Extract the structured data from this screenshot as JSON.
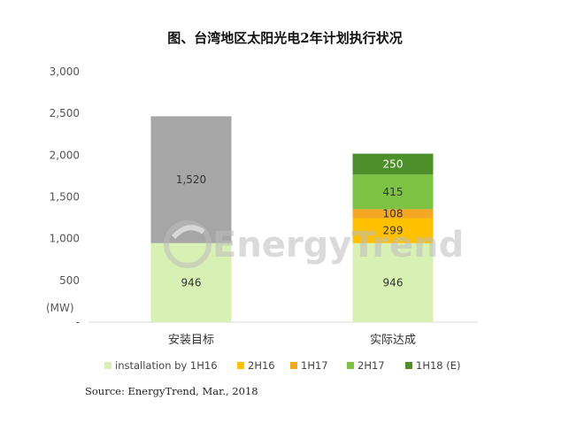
{
  "chart_data": {
    "type": "bar",
    "stacked": true,
    "title": "图、台湾地区太阳光电2年计划执行状况",
    "ylabel": "(MW)",
    "ylim": [
      0,
      3000
    ],
    "yticks": [
      0,
      500,
      1000,
      1500,
      2000,
      2500,
      3000
    ],
    "ytick_labels": [
      "-",
      "500",
      "1,000",
      "1,500",
      "2,000",
      "2,500",
      "3,000"
    ],
    "categories": [
      "安装目标",
      "实际达成"
    ],
    "series": [
      {
        "name": "installation by 1H16",
        "color": "#d9f0b4",
        "values": [
          946,
          946
        ]
      },
      {
        "name": "",
        "color": "#a6a6a6",
        "values": [
          1520,
          0
        ]
      },
      {
        "name": "2H16",
        "color": "#ffc000",
        "values": [
          0,
          299
        ]
      },
      {
        "name": "1H17",
        "color": "#f5a623",
        "values": [
          0,
          108
        ]
      },
      {
        "name": "2H17",
        "color": "#7cc243",
        "values": [
          0,
          415
        ]
      },
      {
        "name": "1H18 (E)",
        "color": "#4d8f2a",
        "values": [
          0,
          250
        ]
      }
    ],
    "data_labels": [
      [
        "946",
        "1,520"
      ],
      [
        "946",
        "299",
        "108",
        "415",
        "250"
      ]
    ],
    "legend": {
      "position": "bottom",
      "entries": [
        {
          "label": "installation by 1H16",
          "color": "#d9f0b4"
        },
        {
          "label": "2H16",
          "color": "#ffc000"
        },
        {
          "label": "1H17",
          "color": "#f5a623"
        },
        {
          "label": "2H17",
          "color": "#7cc243"
        },
        {
          "label": "1H18 (E)",
          "color": "#4d8f2a"
        }
      ]
    },
    "grid": false,
    "source": "Source: EnergyTrend, Mar., 2018",
    "watermark": "EnergyTrend"
  }
}
